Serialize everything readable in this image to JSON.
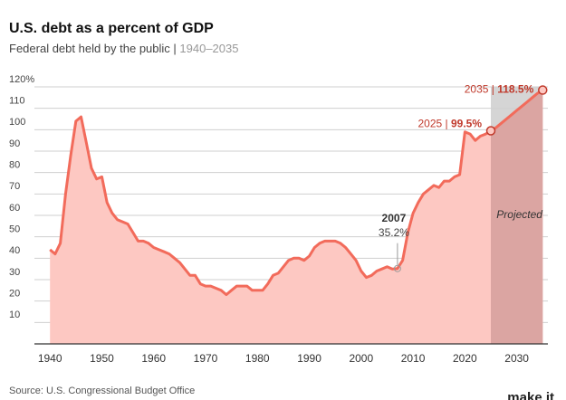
{
  "chart_data": {
    "type": "area",
    "title": "U.S. debt as a percent of GDP",
    "subtitle": "Federal debt held by the public |",
    "subtitle_range": "1940–2035",
    "source": "Source: U.S. Congressional Budget Office",
    "logo": "make it",
    "x": [
      1940,
      1941,
      1942,
      1943,
      1944,
      1945,
      1946,
      1947,
      1948,
      1949,
      1950,
      1951,
      1952,
      1953,
      1954,
      1955,
      1956,
      1957,
      1958,
      1959,
      1960,
      1961,
      1962,
      1963,
      1964,
      1965,
      1966,
      1967,
      1968,
      1969,
      1970,
      1971,
      1972,
      1973,
      1974,
      1975,
      1976,
      1977,
      1978,
      1979,
      1980,
      1981,
      1982,
      1983,
      1984,
      1985,
      1986,
      1987,
      1988,
      1989,
      1990,
      1991,
      1992,
      1993,
      1994,
      1995,
      1996,
      1997,
      1998,
      1999,
      2000,
      2001,
      2002,
      2003,
      2004,
      2005,
      2006,
      2007,
      2008,
      2009,
      2010,
      2011,
      2012,
      2013,
      2014,
      2015,
      2016,
      2017,
      2018,
      2019,
      2020,
      2021,
      2022,
      2023,
      2024,
      2025,
      2026,
      2027,
      2028,
      2029,
      2030,
      2031,
      2032,
      2033,
      2034,
      2035
    ],
    "values": [
      44,
      42,
      47,
      70,
      88,
      104,
      106,
      94,
      82,
      77,
      78,
      66,
      61,
      58,
      57,
      56,
      52,
      48,
      48,
      47,
      45,
      44,
      43,
      42,
      40,
      38,
      35,
      32,
      32,
      28,
      27,
      27,
      26,
      25,
      23,
      25,
      27,
      27,
      27,
      25,
      25,
      25,
      28,
      32,
      33,
      36,
      39,
      40,
      40,
      39,
      41,
      45,
      47,
      48,
      48,
      48,
      47,
      45,
      42,
      39,
      34,
      31,
      32,
      34,
      35,
      36,
      35,
      35.2,
      39,
      52,
      61,
      66,
      70,
      72,
      74,
      73,
      76,
      76,
      78,
      79,
      99,
      98,
      95,
      97,
      98,
      99.5,
      101,
      103,
      105,
      107,
      109,
      111,
      113,
      115,
      117,
      118.5
    ],
    "color": "#f26b5b",
    "area_color": "#fdc8c2",
    "xlim": [
      1937,
      2036
    ],
    "ylim": [
      0,
      120
    ],
    "xticks": [
      1940,
      1950,
      1960,
      1970,
      1980,
      1990,
      2000,
      2010,
      2020,
      2030
    ],
    "yticks": [
      10,
      20,
      30,
      40,
      50,
      60,
      70,
      80,
      90,
      100,
      110,
      {
        "value": 120,
        "label": "120%"
      }
    ],
    "grid": true,
    "projected": {
      "start": 2025,
      "end": 2035,
      "label": "Projected",
      "color": "#d5d5d5",
      "area_color": "#dba5a2"
    },
    "annotations": [
      {
        "x": 2007,
        "y": 35.2,
        "year": "2007",
        "text": "35.2%"
      },
      {
        "x": 2025,
        "y": 99.5,
        "year": "2025 |",
        "text": "99.5%"
      },
      {
        "x": 2035,
        "y": 118.5,
        "year": "2035 |",
        "text": "118.5%"
      }
    ]
  }
}
